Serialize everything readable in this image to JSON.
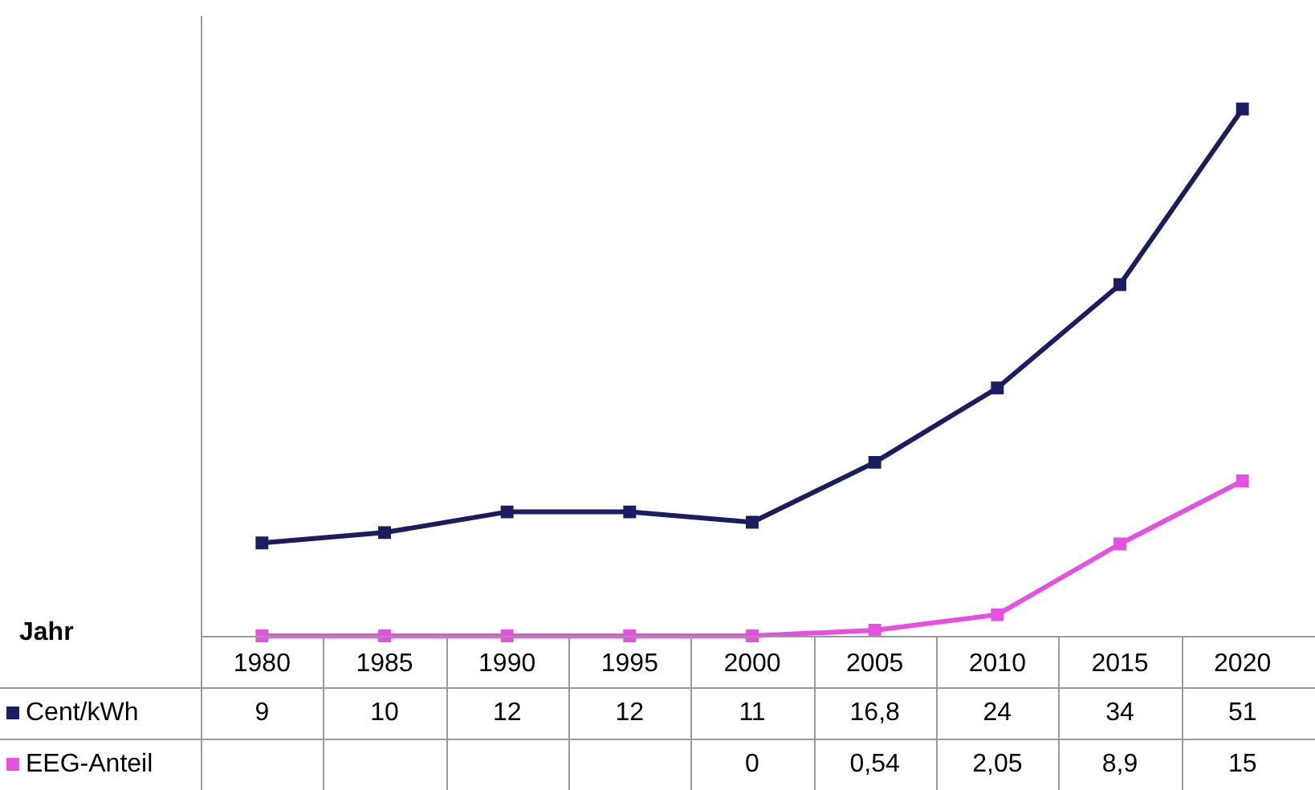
{
  "chart_data": {
    "type": "line",
    "xlabel": "Jahr",
    "categories": [
      "1980",
      "1985",
      "1990",
      "1995",
      "2000",
      "2005",
      "2010",
      "2015",
      "2020"
    ],
    "series": [
      {
        "name": "Cent/kWh",
        "color": "#1c1c60",
        "values": [
          9,
          10,
          12,
          12,
          11,
          16.8,
          24,
          34,
          51
        ],
        "value_labels": [
          "9",
          "10",
          "12",
          "12",
          "11",
          "16,8",
          "24",
          "34",
          "51"
        ]
      },
      {
        "name": "EEG-Anteil",
        "color": "#e650e0",
        "values": [
          0,
          0,
          0,
          0,
          0,
          0.54,
          2.05,
          8.9,
          15
        ],
        "value_labels": [
          null,
          null,
          null,
          null,
          "0",
          "0,54",
          "2,05",
          "8,9",
          "15"
        ]
      }
    ],
    "marker": "square",
    "grid": false,
    "legend": "bottom left"
  }
}
